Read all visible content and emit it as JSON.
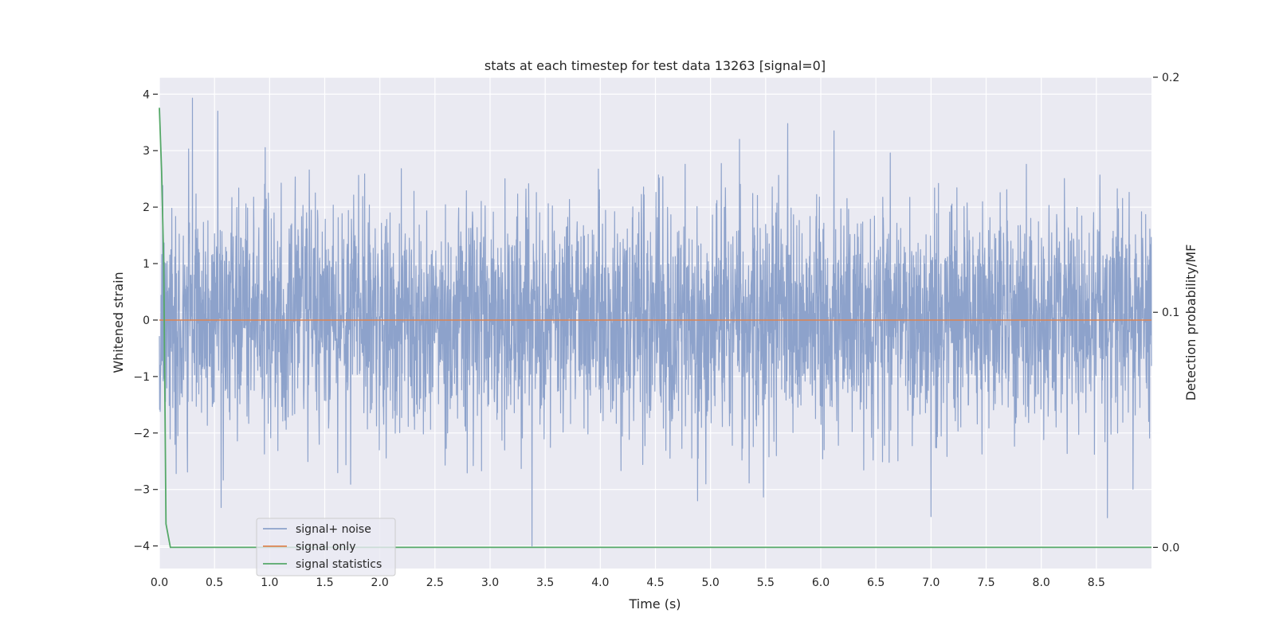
{
  "chart_data": {
    "type": "line",
    "title": "stats at each timestep for test data 13263 [signal=0]",
    "xlabel": "Time (s)",
    "ylabel": "Whitened strain",
    "y2label": "Detection probability/MF",
    "xlim": [
      0.0,
      9.0
    ],
    "ylim": [
      -4.4,
      4.3
    ],
    "y2lim": [
      -0.009,
      0.2
    ],
    "xticks": [
      "0.0",
      "0.5",
      "1.0",
      "1.5",
      "2.0",
      "2.5",
      "3.0",
      "3.5",
      "4.0",
      "4.5",
      "5.0",
      "5.5",
      "6.0",
      "6.5",
      "7.0",
      "7.5",
      "8.0",
      "8.5"
    ],
    "yticks": [
      "4",
      "3",
      "2",
      "1",
      "0",
      "−1",
      "−2",
      "−3",
      "−4"
    ],
    "y2ticks": [
      "0.2",
      "0.1",
      "0.0"
    ],
    "grid": true,
    "legend_position": "lower-left",
    "series": [
      {
        "name": "signal+ noise",
        "color": "#8da2cb",
        "axis": "left",
        "description_kind": "gaussian-noise",
        "x_range": [
          0.0,
          9.0
        ],
        "sigma": 1.0,
        "peaks": [
          {
            "x": 0.3,
            "y": 3.93
          },
          {
            "x": 0.53,
            "y": 3.7
          },
          {
            "x": 5.7,
            "y": 3.48
          },
          {
            "x": 6.12,
            "y": 3.35
          },
          {
            "x": 3.38,
            "y": -4.0
          },
          {
            "x": 0.56,
            "y": -3.32
          },
          {
            "x": 7.0,
            "y": -3.48
          },
          {
            "x": 8.6,
            "y": -3.5
          }
        ]
      },
      {
        "name": "signal only",
        "color": "#dd8452",
        "axis": "left",
        "x": [
          0.0,
          9.0
        ],
        "values": [
          0.0,
          0.0
        ]
      },
      {
        "name": "signal statistics",
        "color": "#55a868",
        "axis": "right",
        "x": [
          0.0,
          0.02,
          0.04,
          0.06,
          0.1,
          0.15,
          1.0,
          3.0,
          5.0,
          7.0,
          8.3,
          9.0
        ],
        "values": [
          0.187,
          0.16,
          0.12,
          0.01,
          0.0,
          0.0,
          0.0,
          0.0,
          0.0,
          0.0,
          0.0,
          0.0
        ]
      }
    ]
  }
}
